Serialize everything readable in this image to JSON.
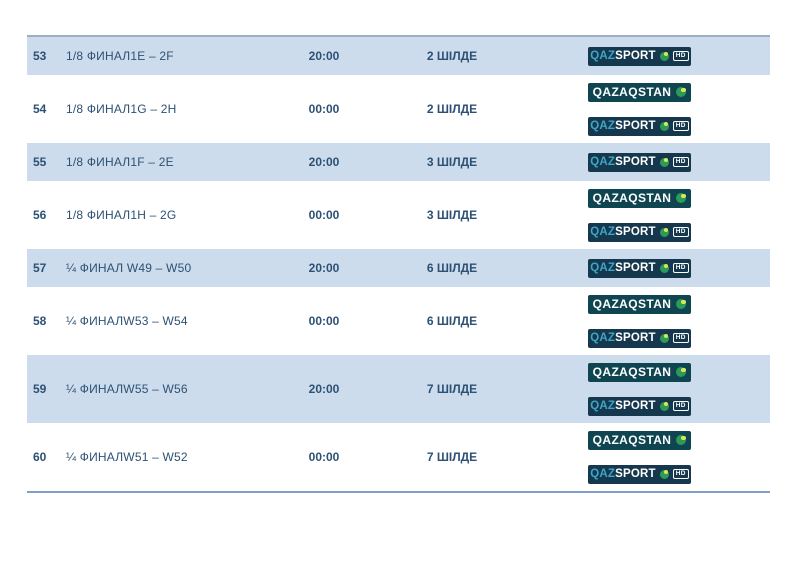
{
  "table": {
    "rows": [
      {
        "num": "53",
        "match": "1/8 ФИНАЛ1E – 2F",
        "time": "20:00",
        "date": "2 ШІЛДЕ",
        "channels": [
          "qazsport"
        ],
        "highlight": true
      },
      {
        "num": "54",
        "match": "1/8 ФИНАЛ1G – 2H",
        "time": "00:00",
        "date": "2 ШІЛДЕ",
        "channels": [
          "qazaqstan",
          "qazsport"
        ],
        "highlight": false
      },
      {
        "num": "55",
        "match": "1/8 ФИНАЛ1F – 2E",
        "time": "20:00",
        "date": "3 ШІЛДЕ",
        "channels": [
          "qazsport"
        ],
        "highlight": true
      },
      {
        "num": "56",
        "match": "1/8 ФИНАЛ1H – 2G",
        "time": "00:00",
        "date": "3 ШІЛДЕ",
        "channels": [
          "qazaqstan",
          "qazsport"
        ],
        "highlight": false
      },
      {
        "num": "57",
        "match": "¼ ФИНАЛ W49 – W50",
        "time": "20:00",
        "date": "6 ШІЛДЕ",
        "channels": [
          "qazsport"
        ],
        "highlight": true
      },
      {
        "num": "58",
        "match": "¼ ФИНАЛW53 – W54",
        "time": "00:00",
        "date": "6 ШІЛДЕ",
        "channels": [
          "qazaqstan",
          "qazsport"
        ],
        "highlight": false
      },
      {
        "num": "59",
        "match": "¼ ФИНАЛW55 – W56",
        "time": "20:00",
        "date": "7 ШІЛДЕ",
        "channels": [
          "qazaqstan",
          "qazsport"
        ],
        "highlight": true
      },
      {
        "num": "60",
        "match": "¼ ФИНАЛW51 – W52",
        "time": "00:00",
        "date": "7 ШІЛДЕ",
        "channels": [
          "qazaqstan",
          "qazsport"
        ],
        "highlight": false
      }
    ]
  },
  "logos": {
    "qazsport": {
      "prefix": "QAZ",
      "name": "SPORT",
      "hd_label": "HD",
      "icon": "qazaqstan-circle-icon"
    },
    "qazaqstan": {
      "name": "QAZAQSTAN",
      "icon": "qazaqstan-circle-icon"
    }
  },
  "colors": {
    "row_highlight": "#cddcec",
    "text_navy": "#2c5174",
    "qazsport_badge_bg": "#16384e",
    "qazaqstan_badge_bg": "#0f4550",
    "qaz_prefix_blue": "#3ba6c6",
    "logo_circle_green": "#2e9a57",
    "logo_circle_leaf": "#d8e75a",
    "top_border": "#9caebf",
    "bottom_border": "#7f9fc4"
  }
}
